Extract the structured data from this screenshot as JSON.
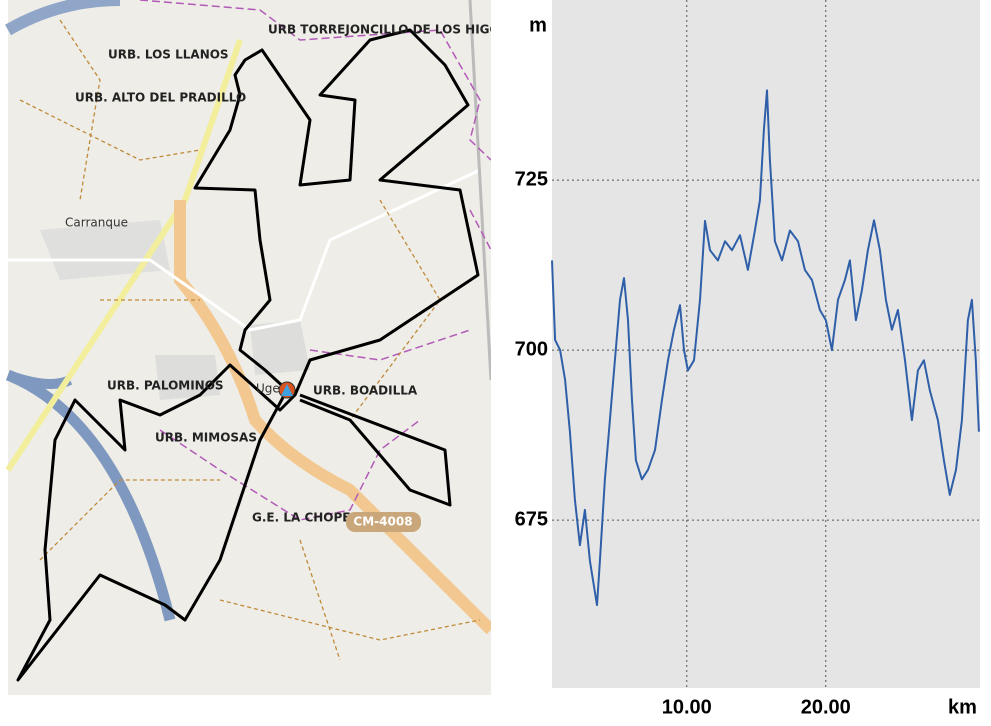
{
  "map": {
    "labels": [
      "URB TORREJONCILLO DE LOS HIGOS",
      "URB. LOS LLANOS",
      "URB. ALTO DEL PRADILLO",
      "Carranque",
      "URB. PALOMINOS",
      "Uge",
      "URB. BOADILLA",
      "URB. MIMOSAS",
      "G.E. LA CHOPERA",
      "CM-4008"
    ]
  },
  "chart_data": {
    "type": "line",
    "y_label": "m",
    "x_label": "km",
    "x": [
      0.3,
      0.52,
      0.88,
      1.24,
      1.59,
      1.95,
      2.31,
      2.67,
      3.03,
      3.54,
      3.75,
      4.11,
      4.47,
      4.83,
      5.19,
      5.48,
      5.77,
      6.06,
      6.34,
      6.77,
      7.21,
      7.71,
      8.21,
      8.65,
      9.08,
      9.51,
      9.8,
      10.08,
      10.52,
      10.95,
      11.31,
      11.67,
      12.24,
      12.75,
      13.25,
      13.83,
      14.4,
      14.9,
      15.26,
      15.55,
      15.77,
      15.98,
      16.34,
      16.85,
      17.42,
      18.0,
      18.5,
      19.01,
      19.58,
      20.01,
      20.44,
      20.88,
      21.38,
      21.74,
      22.17,
      22.6,
      23.03,
      23.47,
      23.9,
      24.33,
      24.76,
      25.19,
      25.7,
      26.2,
      26.63,
      27.06,
      27.49,
      28.07,
      28.5,
      28.93,
      29.37,
      29.8,
      30.23,
      30.52,
      30.8,
      31.02
    ],
    "series": [
      {
        "color": "#2f5fa8",
        "values": [
          713.2,
          701.5,
          700,
          695.6,
          688,
          678,
          671.3,
          676.5,
          669,
          662.5,
          669,
          681,
          689.7,
          698.5,
          707.4,
          710.6,
          704.4,
          692.6,
          683.8,
          681,
          682.4,
          685.3,
          692.6,
          698.5,
          703,
          706.6,
          700,
          697,
          698.5,
          707.4,
          719,
          714.7,
          713.2,
          716,
          714.7,
          716.9,
          711.8,
          717.6,
          722,
          732.4,
          738.2,
          728,
          716,
          713.2,
          717.6,
          716,
          711.8,
          710.3,
          705.9,
          704.4,
          700,
          707.4,
          710.3,
          713.2,
          704.4,
          708.8,
          714.7,
          719.1,
          714.7,
          707.4,
          703,
          705.9,
          698.5,
          689.7,
          697,
          698.5,
          694.1,
          689.7,
          683.8,
          678.7,
          682.4,
          689.7,
          704.4,
          707.4,
          698.5,
          688
        ]
      }
    ],
    "xlim": [
      0.3,
      31.1
    ],
    "ylim": [
      650.3,
      751.5
    ],
    "xticks": [
      {
        "value": 10,
        "label": "10.00"
      },
      {
        "value": 20,
        "label": "20.00"
      }
    ],
    "yticks": [
      675,
      700,
      725
    ],
    "grid": true
  }
}
